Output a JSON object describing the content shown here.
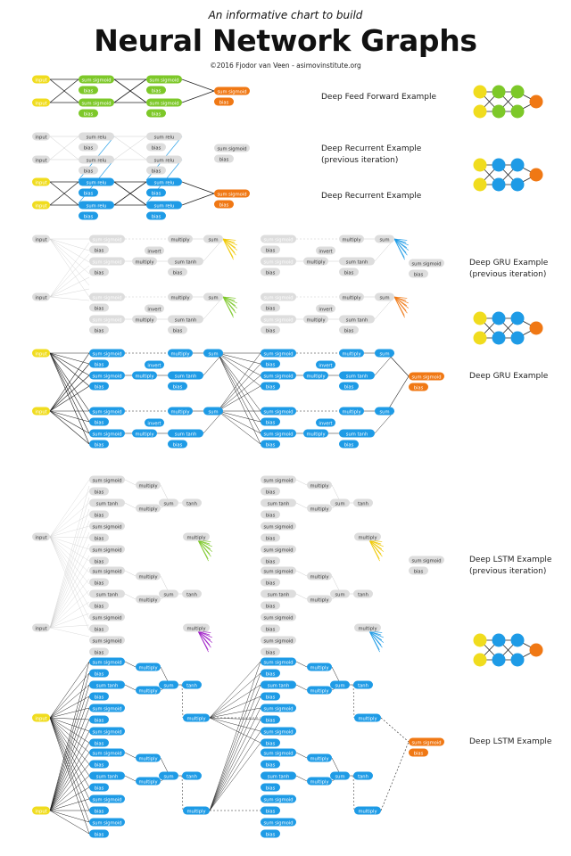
{
  "header": {
    "subtitle": "An informative chart to build",
    "title": "Neural Network Graphs",
    "credit": "©2016 Fjodor van Veen - asimovinstitute.org"
  },
  "sections": {
    "dff": "Deep Feed Forward Example",
    "drn_prev_1": "Deep Recurrent Example",
    "drn_prev_2": "(previous iteration)",
    "drn": "Deep Recurrent Example",
    "gru_prev_1": "Deep GRU Example",
    "gru_prev_2": "(previous iteration)",
    "gru": "Deep GRU Example",
    "lstm_prev_1": "Deep LSTM Example",
    "lstm_prev_2": "(previous iteration)",
    "lstm": "Deep LSTM Example"
  },
  "node_text": {
    "input": "input",
    "sum": "sum",
    "sigmoid": "sigmoid",
    "relu": "relu",
    "tanh": "tanh",
    "bias": "bias",
    "multiply": "multiply",
    "invert": "invert"
  },
  "colors": {
    "input": "#f0dc1e",
    "hidden_ff": "#7dc829",
    "hidden_rec": "#1e9be6",
    "output": "#f07814",
    "ghost": "#dddddd",
    "gate_gru": "#1e9be6",
    "gate_lstm": "#1e9be6"
  }
}
